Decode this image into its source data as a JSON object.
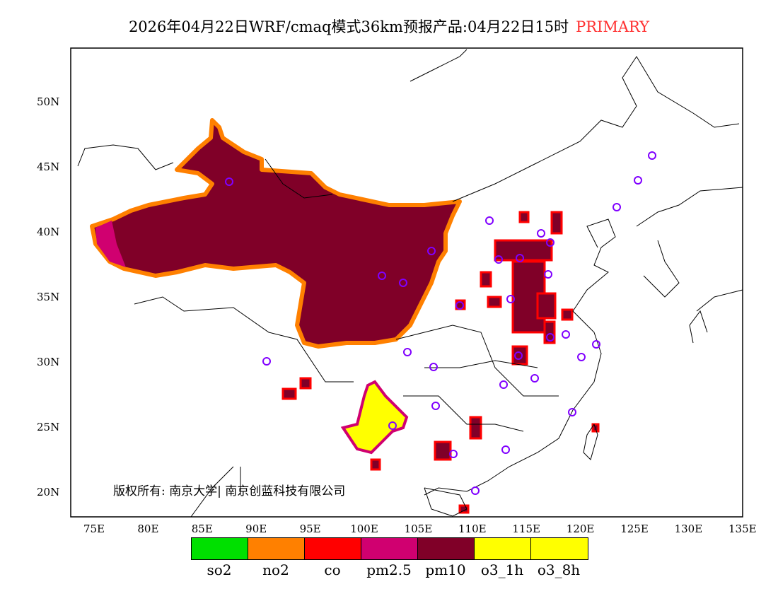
{
  "title": {
    "main": "2026年04月22日WRF/cmaq模式36km预报产品:04月22日15时",
    "tag": "PRIMARY",
    "tag_color": "#ff3030"
  },
  "axes": {
    "lat_labels": [
      "50N",
      "45N",
      "40N",
      "35N",
      "30N",
      "25N",
      "20N"
    ],
    "lon_labels": [
      "75E",
      "80E",
      "85E",
      "90E",
      "95E",
      "100E",
      "105E",
      "110E",
      "115E",
      "120E",
      "125E",
      "130E",
      "135E"
    ]
  },
  "legend": [
    {
      "label": "so2",
      "color": "#00e000"
    },
    {
      "label": "no2",
      "color": "#ff8000"
    },
    {
      "label": "co",
      "color": "#ff0000"
    },
    {
      "label": "pm2.5",
      "color": "#d00070"
    },
    {
      "label": "pm10",
      "color": "#800028"
    },
    {
      "label": "o3_1h",
      "color": "#ffff00"
    },
    {
      "label": "o3_8h",
      "color": "#ffff00"
    }
  ],
  "copyright": "版权所有: 南京大学| 南京创蓝科技有限公司",
  "station_color": "#8000ff"
}
